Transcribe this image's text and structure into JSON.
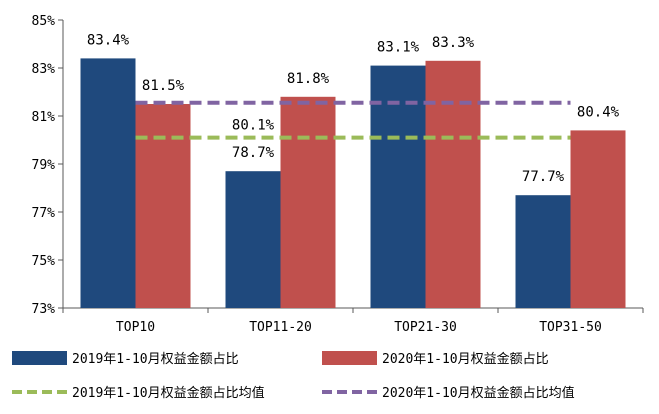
{
  "chart_data": {
    "type": "bar",
    "categories": [
      "TOP10",
      "TOP11-20",
      "TOP21-30",
      "TOP31-50"
    ],
    "series": [
      {
        "name": "2019年1-10月权益金额占比",
        "values": [
          83.4,
          78.7,
          83.1,
          77.7
        ],
        "labels": [
          "83.4%",
          "78.7%",
          "83.1%",
          "77.7%"
        ],
        "color": "#1f497d"
      },
      {
        "name": "2020年1-10月权益金额占比",
        "values": [
          81.5,
          81.8,
          83.3,
          80.4
        ],
        "labels": [
          "81.5%",
          "81.8%",
          "83.3%",
          "80.4%"
        ],
        "color": "#c0504d"
      }
    ],
    "reference_lines": [
      {
        "name": "2019年1-10月权益金额占比均值",
        "value": 80.1,
        "label": "80.1%",
        "color": "#9bbb59",
        "style": "dashed"
      },
      {
        "name": "2020年1-10月权益金额占比均值",
        "value": 81.55,
        "label": "",
        "color": "#8064a2",
        "style": "dashed"
      }
    ],
    "y_ticks": [
      "73%",
      "75%",
      "77%",
      "79%",
      "81%",
      "83%",
      "85%"
    ],
    "y_tick_values": [
      73,
      75,
      77,
      79,
      81,
      83,
      85
    ],
    "ylim": [
      73,
      85
    ],
    "legend_position": "bottom",
    "grid": false
  }
}
